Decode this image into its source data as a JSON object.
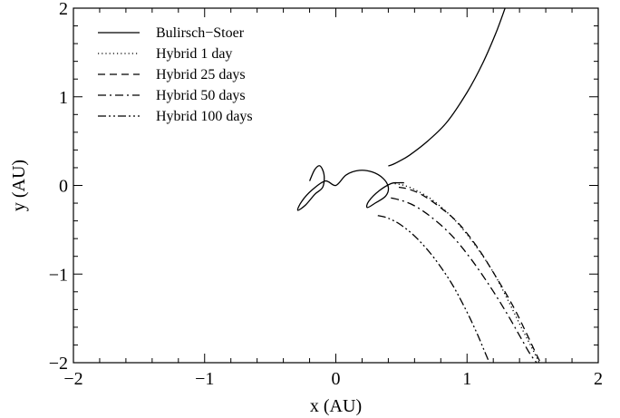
{
  "chart_data": {
    "type": "line",
    "xlabel": "x (AU)",
    "ylabel": "y (AU)",
    "xlim": [
      -2,
      2
    ],
    "ylim": [
      -2,
      2
    ],
    "xticks": [
      -2,
      -1,
      0,
      1,
      2
    ],
    "yticks": [
      -2,
      -1,
      0,
      1,
      2
    ],
    "xtick_labels": [
      "−2",
      "−1",
      "0",
      "1",
      "2"
    ],
    "ytick_labels": [
      "−2",
      "−1",
      "0",
      "1",
      "2"
    ],
    "grid": false,
    "legend_position": "top-left",
    "series": [
      {
        "name": "Bulirsch−Stoer",
        "style": "solid",
        "x": [
          0.4,
          0.44,
          0.48,
          0.56,
          0.7,
          0.85,
          1.0,
          1.12,
          1.22,
          1.29
        ],
        "y": [
          0.22,
          0.24,
          0.27,
          0.34,
          0.5,
          0.72,
          1.05,
          1.38,
          1.72,
          2.0
        ]
      },
      {
        "name": "Hybrid 1 day",
        "style": "dotted",
        "x": [
          0.45,
          0.52,
          0.62,
          0.75,
          0.9,
          1.05,
          1.2,
          1.32,
          1.42,
          1.5,
          1.55
        ],
        "y": [
          0.02,
          0.0,
          -0.06,
          -0.18,
          -0.38,
          -0.65,
          -0.98,
          -1.32,
          -1.62,
          -1.85,
          -2.0
        ]
      },
      {
        "name": "Hybrid 25 days",
        "style": "dashed",
        "x": [
          0.48,
          0.55,
          0.65,
          0.78,
          0.93,
          1.08,
          1.22,
          1.35,
          1.45,
          1.52,
          1.56
        ],
        "y": [
          -0.02,
          -0.04,
          -0.1,
          -0.23,
          -0.42,
          -0.7,
          -1.03,
          -1.36,
          -1.66,
          -1.88,
          -2.0
        ]
      },
      {
        "name": "Hybrid 50 days",
        "style": "dash-dot",
        "x": [
          0.42,
          0.5,
          0.6,
          0.73,
          0.88,
          1.03,
          1.18,
          1.31,
          1.41,
          1.48,
          1.53
        ],
        "y": [
          -0.14,
          -0.17,
          -0.23,
          -0.36,
          -0.56,
          -0.83,
          -1.15,
          -1.46,
          -1.72,
          -1.9,
          -2.0
        ]
      },
      {
        "name": "Hybrid 100 days",
        "style": "dash-dot-dot",
        "x": [
          0.32,
          0.4,
          0.5,
          0.62,
          0.75,
          0.88,
          0.99,
          1.07,
          1.13,
          1.17
        ],
        "y": [
          -0.34,
          -0.37,
          -0.45,
          -0.6,
          -0.82,
          -1.1,
          -1.4,
          -1.65,
          -1.86,
          -2.0
        ]
      }
    ],
    "loop_curve": {
      "x": [
        -0.2,
        -0.16,
        -0.12,
        -0.09,
        -0.1,
        -0.16,
        -0.23,
        -0.29,
        -0.26,
        -0.18,
        -0.08,
        0.0,
        0.08,
        0.18,
        0.28,
        0.36,
        0.4,
        0.38,
        0.3,
        0.24,
        0.25,
        0.33,
        0.42,
        0.47,
        0.52
      ],
      "y": [
        0.05,
        0.18,
        0.22,
        0.12,
        -0.02,
        -0.1,
        -0.22,
        -0.28,
        -0.18,
        -0.05,
        0.05,
        0.0,
        0.12,
        0.17,
        0.15,
        0.08,
        -0.02,
        -0.12,
        -0.2,
        -0.25,
        -0.18,
        -0.06,
        0.02,
        0.03,
        0.03
      ]
    }
  }
}
